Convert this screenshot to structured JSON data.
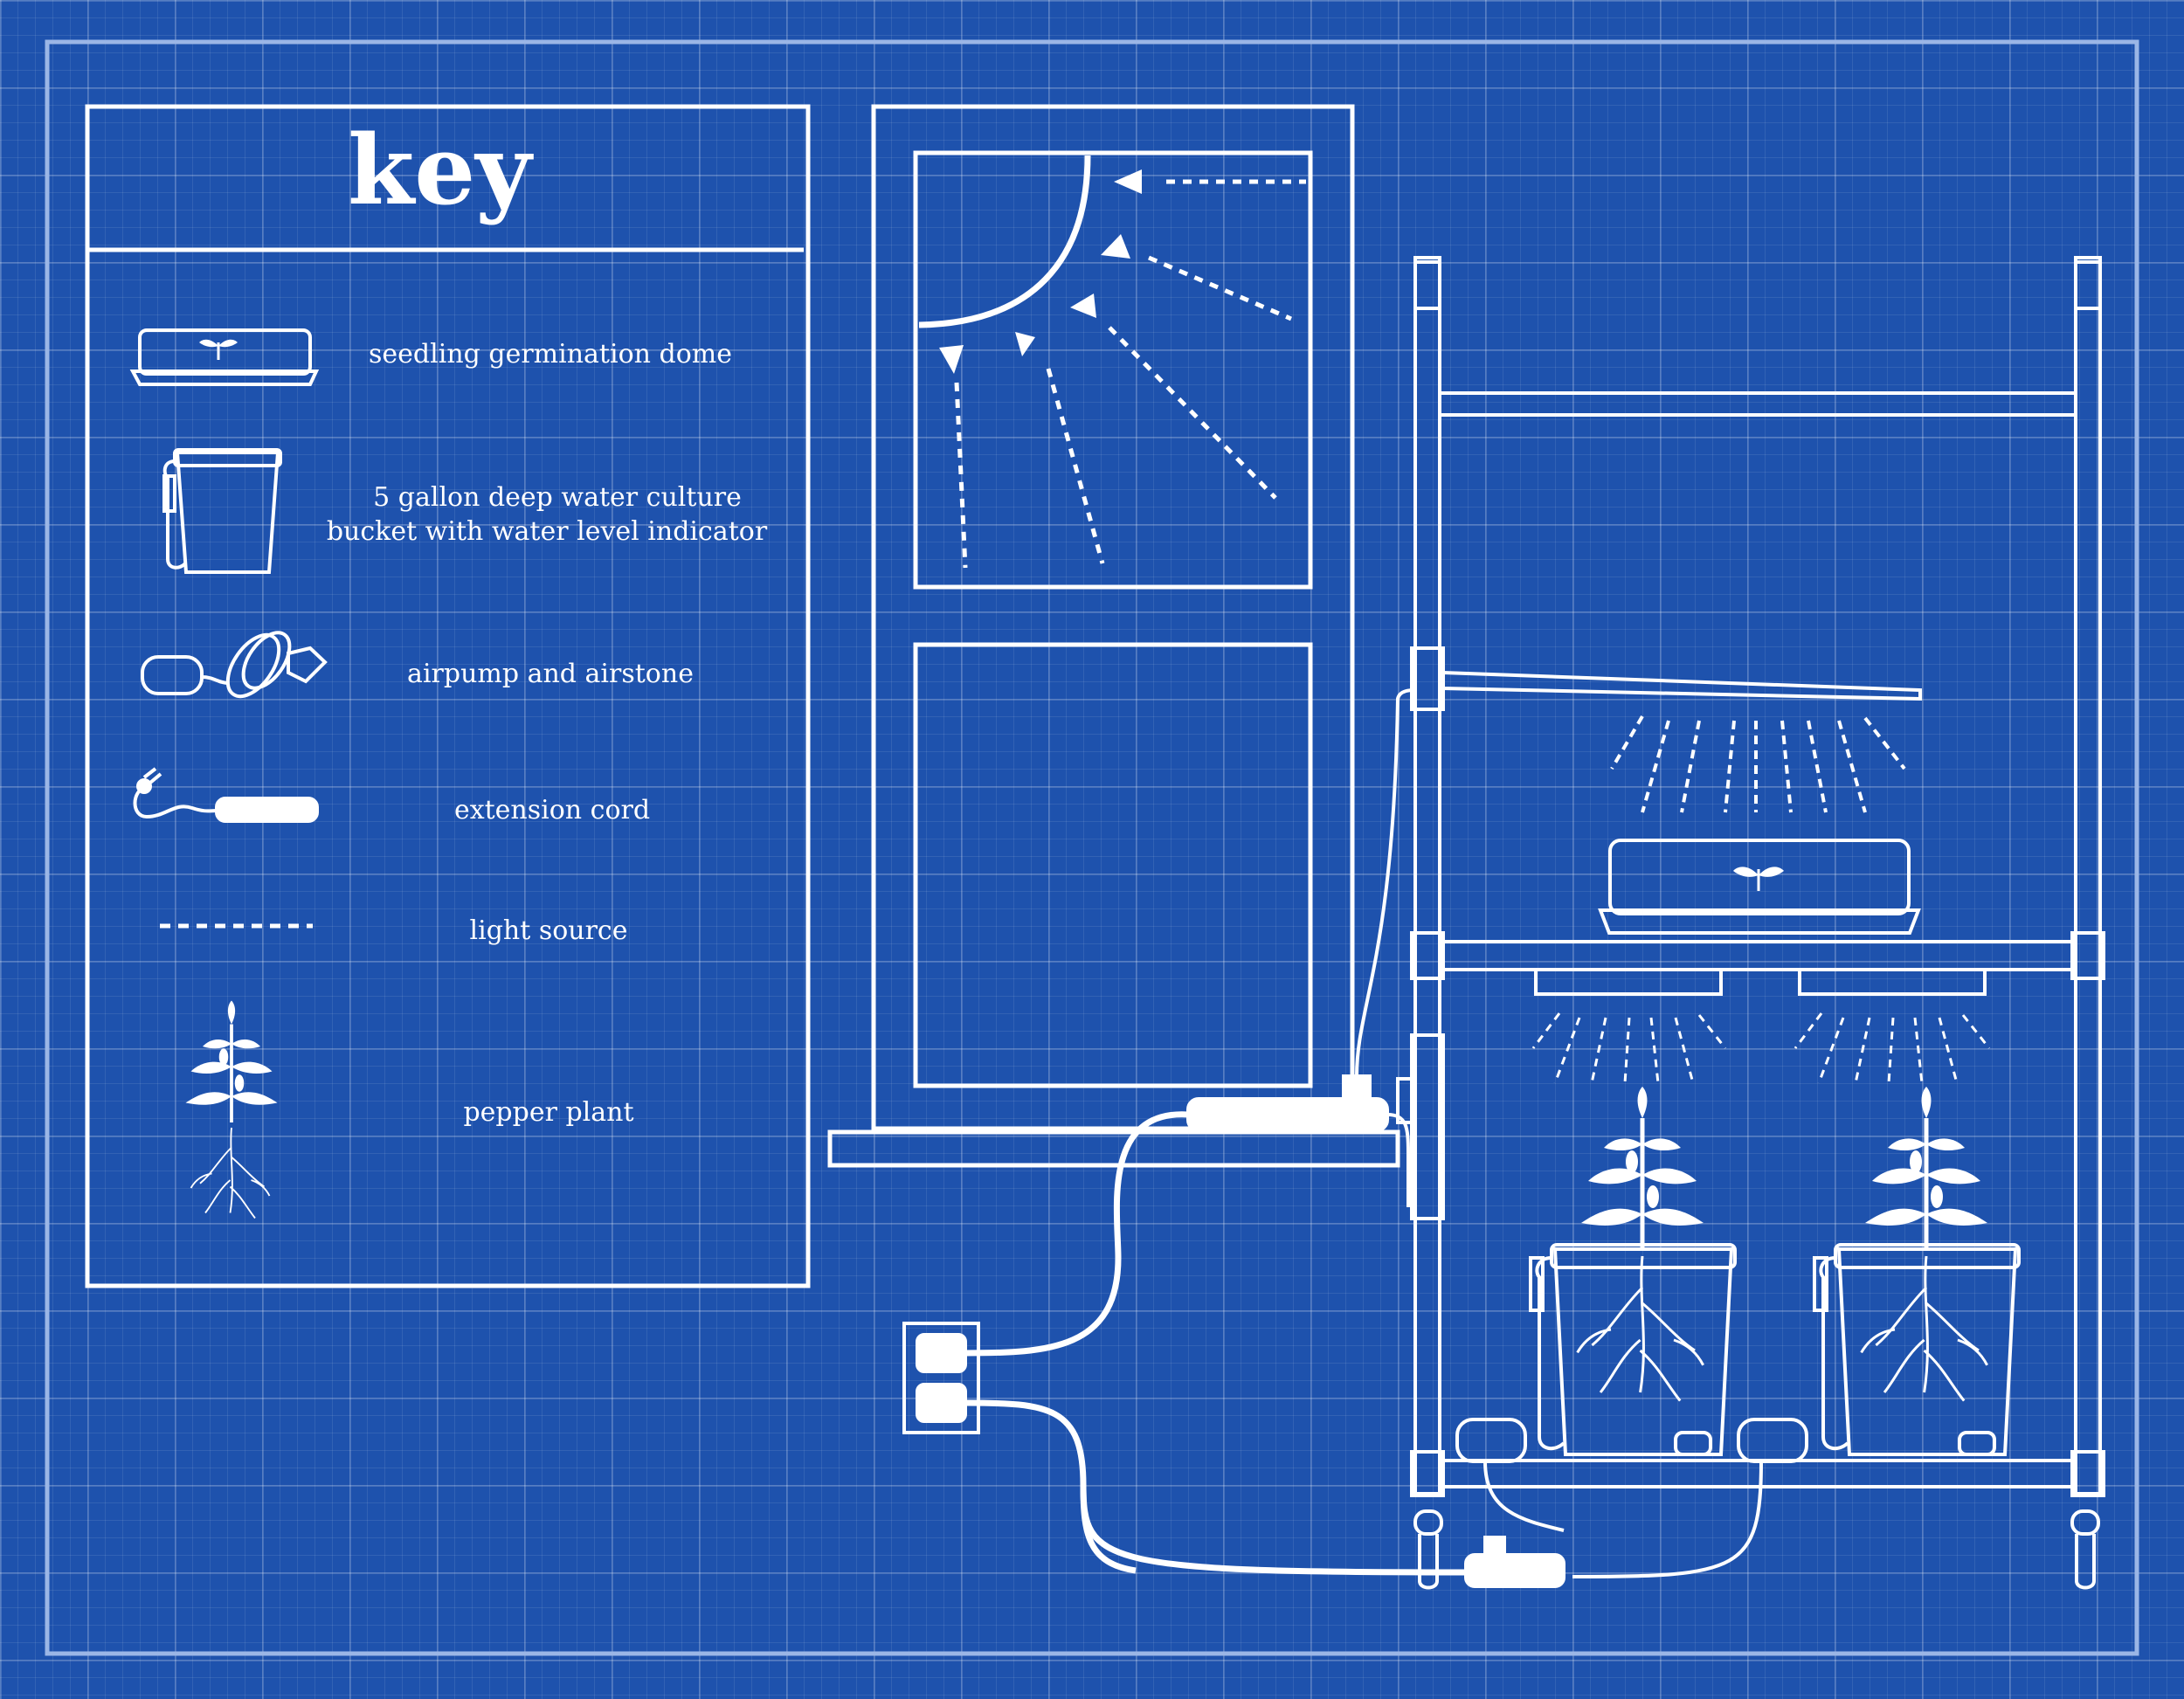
{
  "key": {
    "title": "key",
    "items": [
      {
        "icon": "seedling-dome-icon",
        "label": "seedling germination dome"
      },
      {
        "icon": "bucket-icon",
        "label_line1": "5 gallon deep water culture",
        "label_line2": "bucket with water level indicator"
      },
      {
        "icon": "airpump-icon",
        "label": "airpump and airstone"
      },
      {
        "icon": "extension-cord-icon",
        "label": "extension cord"
      },
      {
        "icon": "light-source-icon",
        "label": "light source"
      },
      {
        "icon": "pepper-plant-icon",
        "label": "pepper plant"
      }
    ]
  },
  "colors": {
    "background": "#1e52ad",
    "line": "#ffffff",
    "grid": "#6b8fd0"
  }
}
